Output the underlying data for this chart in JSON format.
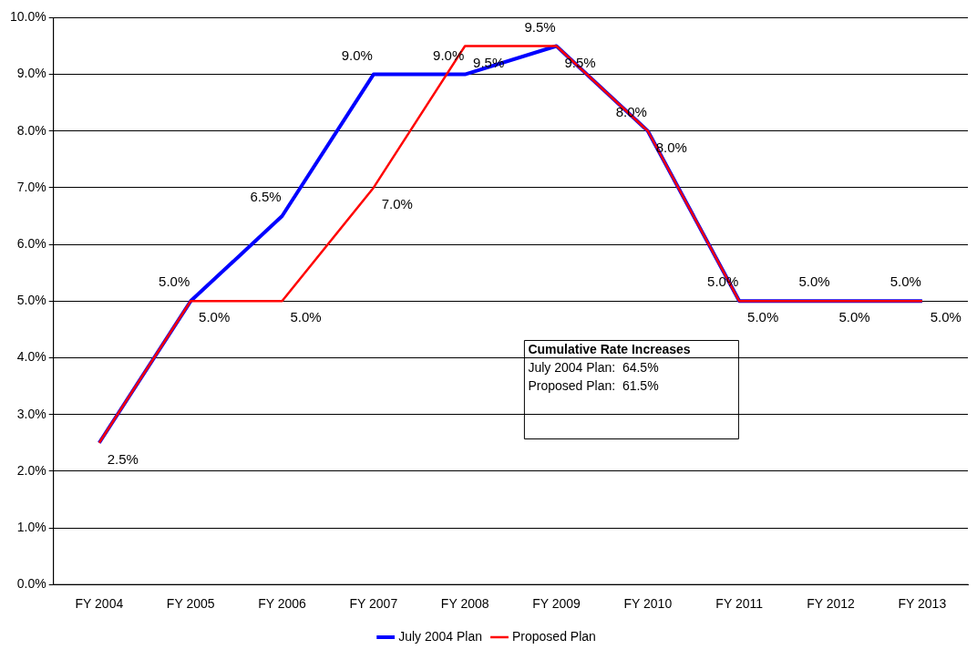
{
  "chart_data": {
    "type": "line",
    "categories": [
      "FY 2004",
      "FY 2005",
      "FY 2006",
      "FY 2007",
      "FY 2008",
      "FY 2009",
      "FY 2010",
      "FY 2011",
      "FY 2012",
      "FY 2013"
    ],
    "series": [
      {
        "name": "July 2004 Plan",
        "color": "#0000ff",
        "values": [
          2.5,
          5.0,
          6.5,
          9.0,
          9.0,
          9.5,
          8.0,
          5.0,
          5.0,
          5.0
        ],
        "value_labels": [
          null,
          "5.0%",
          "6.5%",
          "9.0%",
          "9.0%",
          "9.5%",
          "8.0%",
          "5.0%",
          "5.0%",
          "5.0%"
        ]
      },
      {
        "name": "Proposed Plan",
        "color": "#ff0000",
        "values": [
          2.5,
          5.0,
          5.0,
          7.0,
          9.5,
          9.5,
          8.0,
          5.0,
          5.0,
          5.0
        ],
        "value_labels": [
          "2.5%",
          "5.0%",
          "5.0%",
          "7.0%",
          "9.5%",
          "9.5%",
          "8.0%",
          "5.0%",
          "5.0%",
          "5.0%"
        ]
      }
    ],
    "ylim": [
      0,
      10
    ],
    "yticks": [
      {
        "value": 0,
        "label": "0.0%"
      },
      {
        "value": 1,
        "label": "1.0%"
      },
      {
        "value": 2,
        "label": "2.0%"
      },
      {
        "value": 3,
        "label": "3.0%"
      },
      {
        "value": 4,
        "label": "4.0%"
      },
      {
        "value": 5,
        "label": "5.0%"
      },
      {
        "value": 6,
        "label": "6.0%"
      },
      {
        "value": 7,
        "label": "7.0%"
      },
      {
        "value": 8,
        "label": "8.0%"
      },
      {
        "value": 9,
        "label": "9.0%"
      },
      {
        "value": 10,
        "label": "10.0%"
      }
    ],
    "grid": "y",
    "legend": "bottom",
    "marker": "none",
    "line_style": "solid",
    "annotations": [
      "Cumulative Rate Increases",
      "July 2004 Plan:  64.5%",
      "Proposed Plan:  61.5%"
    ]
  }
}
